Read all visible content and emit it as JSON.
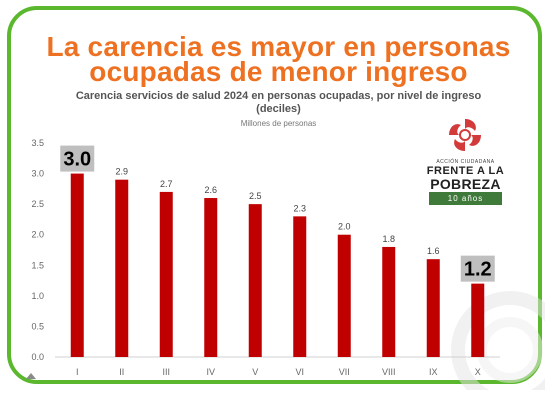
{
  "headline": {
    "line1": "La carencia es mayor en personas",
    "line2": "ocupadas de menor ingreso"
  },
  "logo": {
    "subtitle": "ACCIÓN CIUDADANA",
    "line1": "FRENTE A LA",
    "line2": "POBREZA",
    "ribbon": "10 años"
  },
  "colors": {
    "bar": "#c00000",
    "headline": "#ee7122",
    "border": "#5bb82e",
    "highlight_box": "#bfbfbf"
  },
  "chart_data": {
    "type": "bar",
    "title_line1": "Carencia servicios de salud 2024 en personas ocupadas, por nivel de ingreso",
    "title_line2": "(deciles)",
    "unit_label": "Millones de personas",
    "categories": [
      "I",
      "II",
      "III",
      "IV",
      "V",
      "VI",
      "VII",
      "VIII",
      "IX",
      "X"
    ],
    "values": [
      3.0,
      2.9,
      2.7,
      2.6,
      2.5,
      2.3,
      2.0,
      1.8,
      1.6,
      1.2
    ],
    "data_labels": [
      "3.0",
      "2.9",
      "2.7",
      "2.6",
      "2.5",
      "2.3",
      "2.0",
      "1.8",
      "1.6",
      "1.2"
    ],
    "highlighted": [
      0,
      9
    ],
    "yticks": [
      "0.0",
      "0.5",
      "1.0",
      "1.5",
      "2.0",
      "2.5",
      "3.0",
      "3.5"
    ],
    "ylim": [
      0,
      3.5
    ],
    "grid": false
  }
}
